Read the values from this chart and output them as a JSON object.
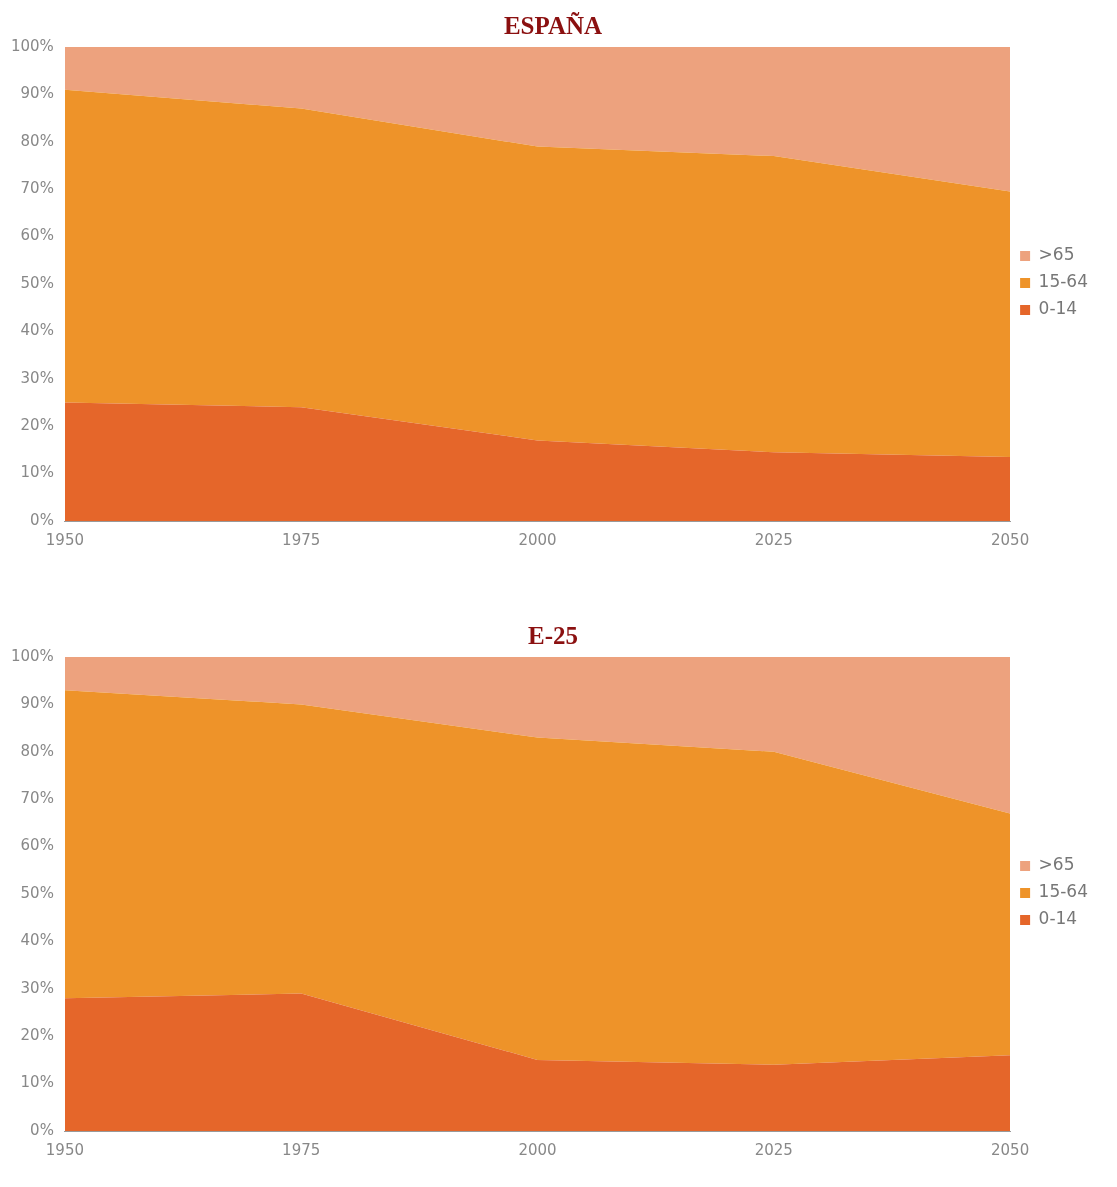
{
  "chart_data": [
    {
      "type": "area",
      "title": "ESPAÑA",
      "stacked": true,
      "x": [
        1950,
        1975,
        2000,
        2025,
        2050
      ],
      "xlim": [
        1950,
        2050
      ],
      "xticks": [
        1950,
        1975,
        2000,
        2025,
        2050
      ],
      "ylim": [
        0,
        100
      ],
      "yticks": [
        {
          "value": 0,
          "label": "0%"
        },
        {
          "value": 10,
          "label": "10%"
        },
        {
          "value": 20,
          "label": "20%"
        },
        {
          "value": 30,
          "label": "30%"
        },
        {
          "value": 40,
          "label": "40%"
        },
        {
          "value": 50,
          "label": "50%"
        },
        {
          "value": 60,
          "label": "60%"
        },
        {
          "value": 70,
          "label": "70%"
        },
        {
          "value": 80,
          "label": "80%"
        },
        {
          "value": 90,
          "label": "90%"
        },
        {
          "value": 100,
          "label": "100%"
        }
      ],
      "grid": false,
      "legend": "right",
      "series": [
        {
          "name": "0-14",
          "color": "#e5662a",
          "values": [
            25,
            24,
            17,
            14.5,
            13.5
          ]
        },
        {
          "name": "15-64",
          "color": "#ee9329",
          "values": [
            66,
            63,
            62,
            62.5,
            56
          ]
        },
        {
          "name": ">65",
          "color": "#eda27e",
          "values": [
            9,
            13,
            21,
            23,
            30.5
          ]
        }
      ]
    },
    {
      "type": "area",
      "title": "E-25",
      "stacked": true,
      "x": [
        1950,
        1975,
        2000,
        2025,
        2050
      ],
      "xlim": [
        1950,
        2050
      ],
      "xticks": [
        1950,
        1975,
        2000,
        2025,
        2050
      ],
      "ylim": [
        0,
        100
      ],
      "yticks": [
        {
          "value": 0,
          "label": "0%"
        },
        {
          "value": 10,
          "label": "10%"
        },
        {
          "value": 20,
          "label": "20%"
        },
        {
          "value": 30,
          "label": "30%"
        },
        {
          "value": 40,
          "label": "40%"
        },
        {
          "value": 50,
          "label": "50%"
        },
        {
          "value": 60,
          "label": "60%"
        },
        {
          "value": 70,
          "label": "70%"
        },
        {
          "value": 80,
          "label": "80%"
        },
        {
          "value": 90,
          "label": "90%"
        },
        {
          "value": 100,
          "label": "100%"
        }
      ],
      "grid": false,
      "legend": "right",
      "series": [
        {
          "name": "0-14",
          "color": "#e5662a",
          "values": [
            28,
            29,
            15,
            14,
            16
          ]
        },
        {
          "name": "15-64",
          "color": "#ee9329",
          "values": [
            65,
            61,
            68,
            66,
            51
          ]
        },
        {
          "name": ">65",
          "color": "#eda27e",
          "values": [
            7,
            10,
            17,
            20,
            33
          ]
        }
      ]
    }
  ]
}
